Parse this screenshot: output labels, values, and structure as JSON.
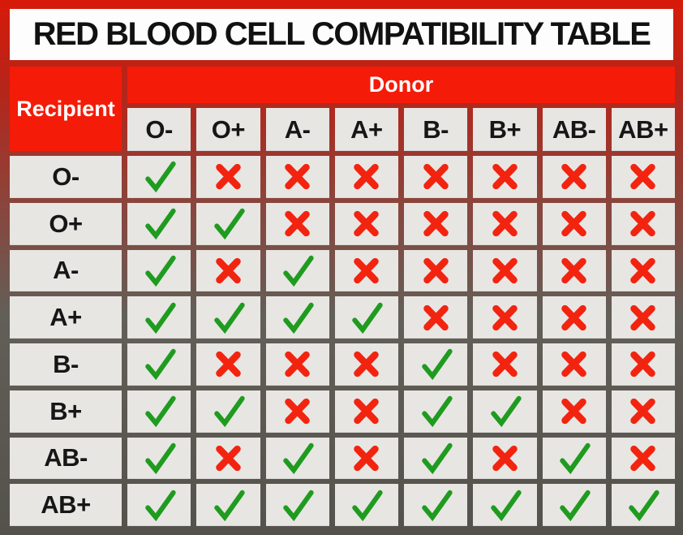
{
  "title": "RED BLOOD CELL COMPATIBILITY TABLE",
  "table": {
    "recipient_label": "Recipient",
    "donor_label": "Donor"
  },
  "chart_data": {
    "type": "table",
    "title": "RED BLOOD CELL COMPATIBILITY TABLE",
    "column_group_header": "Donor",
    "row_group_header": "Recipient",
    "columns": [
      "O-",
      "O+",
      "A-",
      "A+",
      "B-",
      "B+",
      "AB-",
      "AB+"
    ],
    "rows": [
      "O-",
      "O+",
      "A-",
      "A+",
      "B-",
      "B+",
      "AB-",
      "AB+"
    ],
    "values": [
      [
        1,
        0,
        0,
        0,
        0,
        0,
        0,
        0
      ],
      [
        1,
        1,
        0,
        0,
        0,
        0,
        0,
        0
      ],
      [
        1,
        0,
        1,
        0,
        0,
        0,
        0,
        0
      ],
      [
        1,
        1,
        1,
        1,
        0,
        0,
        0,
        0
      ],
      [
        1,
        0,
        0,
        0,
        1,
        0,
        0,
        0
      ],
      [
        1,
        1,
        0,
        0,
        1,
        1,
        0,
        0
      ],
      [
        1,
        0,
        1,
        0,
        1,
        0,
        1,
        0
      ],
      [
        1,
        1,
        1,
        1,
        1,
        1,
        1,
        1
      ]
    ],
    "legend": {
      "1": "compatible (green check)",
      "0": "incompatible (red cross)"
    }
  },
  "icons": {
    "check": "check-icon",
    "cross": "cross-icon",
    "check_glyph": "✓",
    "cross_glyph": "✗"
  },
  "colors": {
    "accent_red": "#f41b08",
    "check_green": "#1f9b1f",
    "cross_red": "#f22410",
    "cell_bg": "#e7e6e3",
    "title_bg": "#fdfdfd",
    "title_text": "#111111",
    "bg_top": "#d71a0a",
    "bg_upper": "#b5251a",
    "bg_mid": "#8a453c",
    "bg_lower": "#625f58",
    "bg_bottom": "#54524c"
  }
}
